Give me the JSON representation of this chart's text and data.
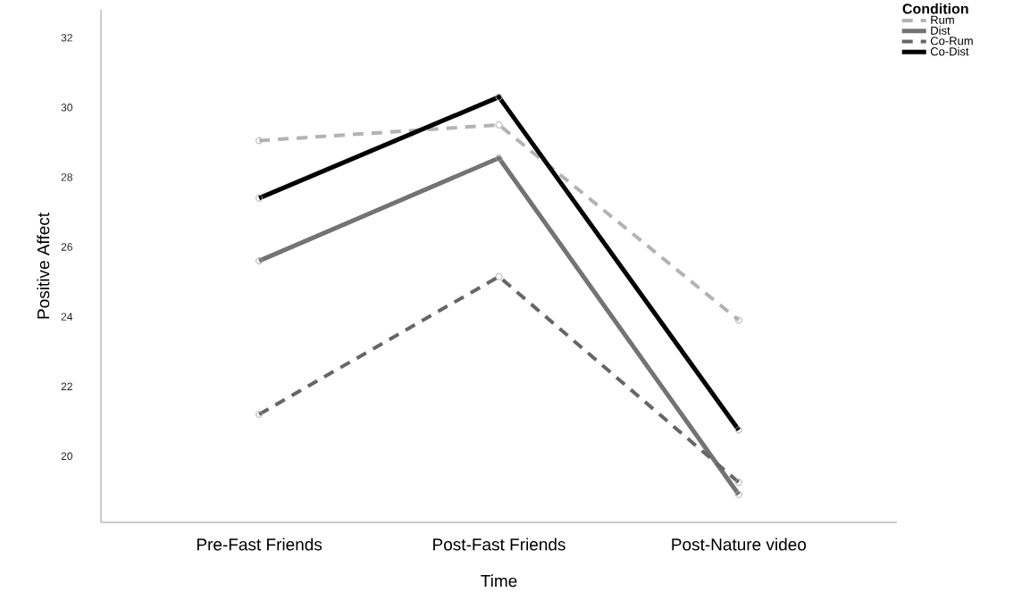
{
  "chart_data": {
    "type": "line",
    "xlabel": "Time",
    "ylabel": "Positive Affect",
    "legend_title": "Condition",
    "categories": [
      "Pre-Fast Friends",
      "Post-Fast Friends",
      "Post-Nature video"
    ],
    "series": [
      {
        "name": "Rum",
        "color": "#b3b3b3",
        "line_style": "dashed",
        "values": [
          29.05,
          29.5,
          23.9
        ]
      },
      {
        "name": "Dist",
        "color": "#737373",
        "line_style": "solid",
        "values": [
          25.6,
          28.55,
          18.9
        ]
      },
      {
        "name": "Co-Rum",
        "color": "#666666",
        "line_style": "dashed",
        "values": [
          21.2,
          25.15,
          19.25
        ]
      },
      {
        "name": "Co-Dist",
        "color": "#000000",
        "line_style": "solid",
        "values": [
          27.4,
          30.3,
          20.75
        ]
      }
    ],
    "ylim": [
      18.1,
      32.8
    ],
    "yticks": [
      20,
      22,
      24,
      26,
      28,
      30,
      32
    ],
    "grid": false,
    "legend": "top right",
    "marker": "circle"
  }
}
